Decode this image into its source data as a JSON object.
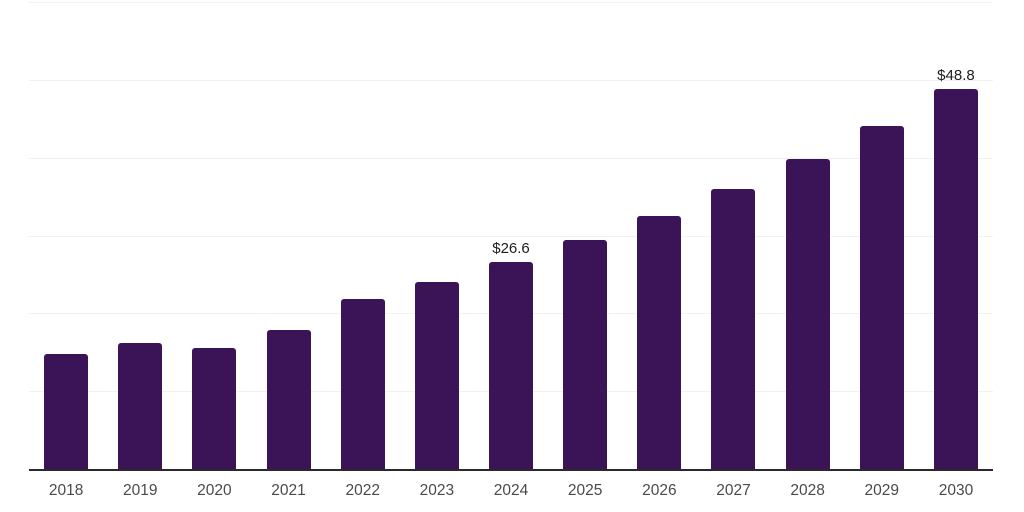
{
  "chart_data": {
    "type": "bar",
    "title": "",
    "xlabel": "",
    "ylabel": "",
    "categories": [
      "2018",
      "2019",
      "2020",
      "2021",
      "2022",
      "2023",
      "2024",
      "2025",
      "2026",
      "2027",
      "2028",
      "2029",
      "2030"
    ],
    "values": [
      14.8,
      16.2,
      15.5,
      17.9,
      21.8,
      24.0,
      26.6,
      29.4,
      32.5,
      36.0,
      39.8,
      44.1,
      48.8
    ],
    "value_labels": [
      null,
      null,
      null,
      null,
      null,
      null,
      "$26.6",
      null,
      null,
      null,
      null,
      null,
      "$48.8"
    ],
    "ylim": [
      0,
      60
    ],
    "grid_step": 10,
    "grid": "horizontal",
    "legend": "none",
    "colors": {
      "background": "#ffffff",
      "bar": "#3b1457",
      "axis": "#2a2a2a",
      "gridline": "#f2f2f2",
      "tick_label": "#4a4a4a",
      "value_label": "#1c1c1c"
    }
  }
}
